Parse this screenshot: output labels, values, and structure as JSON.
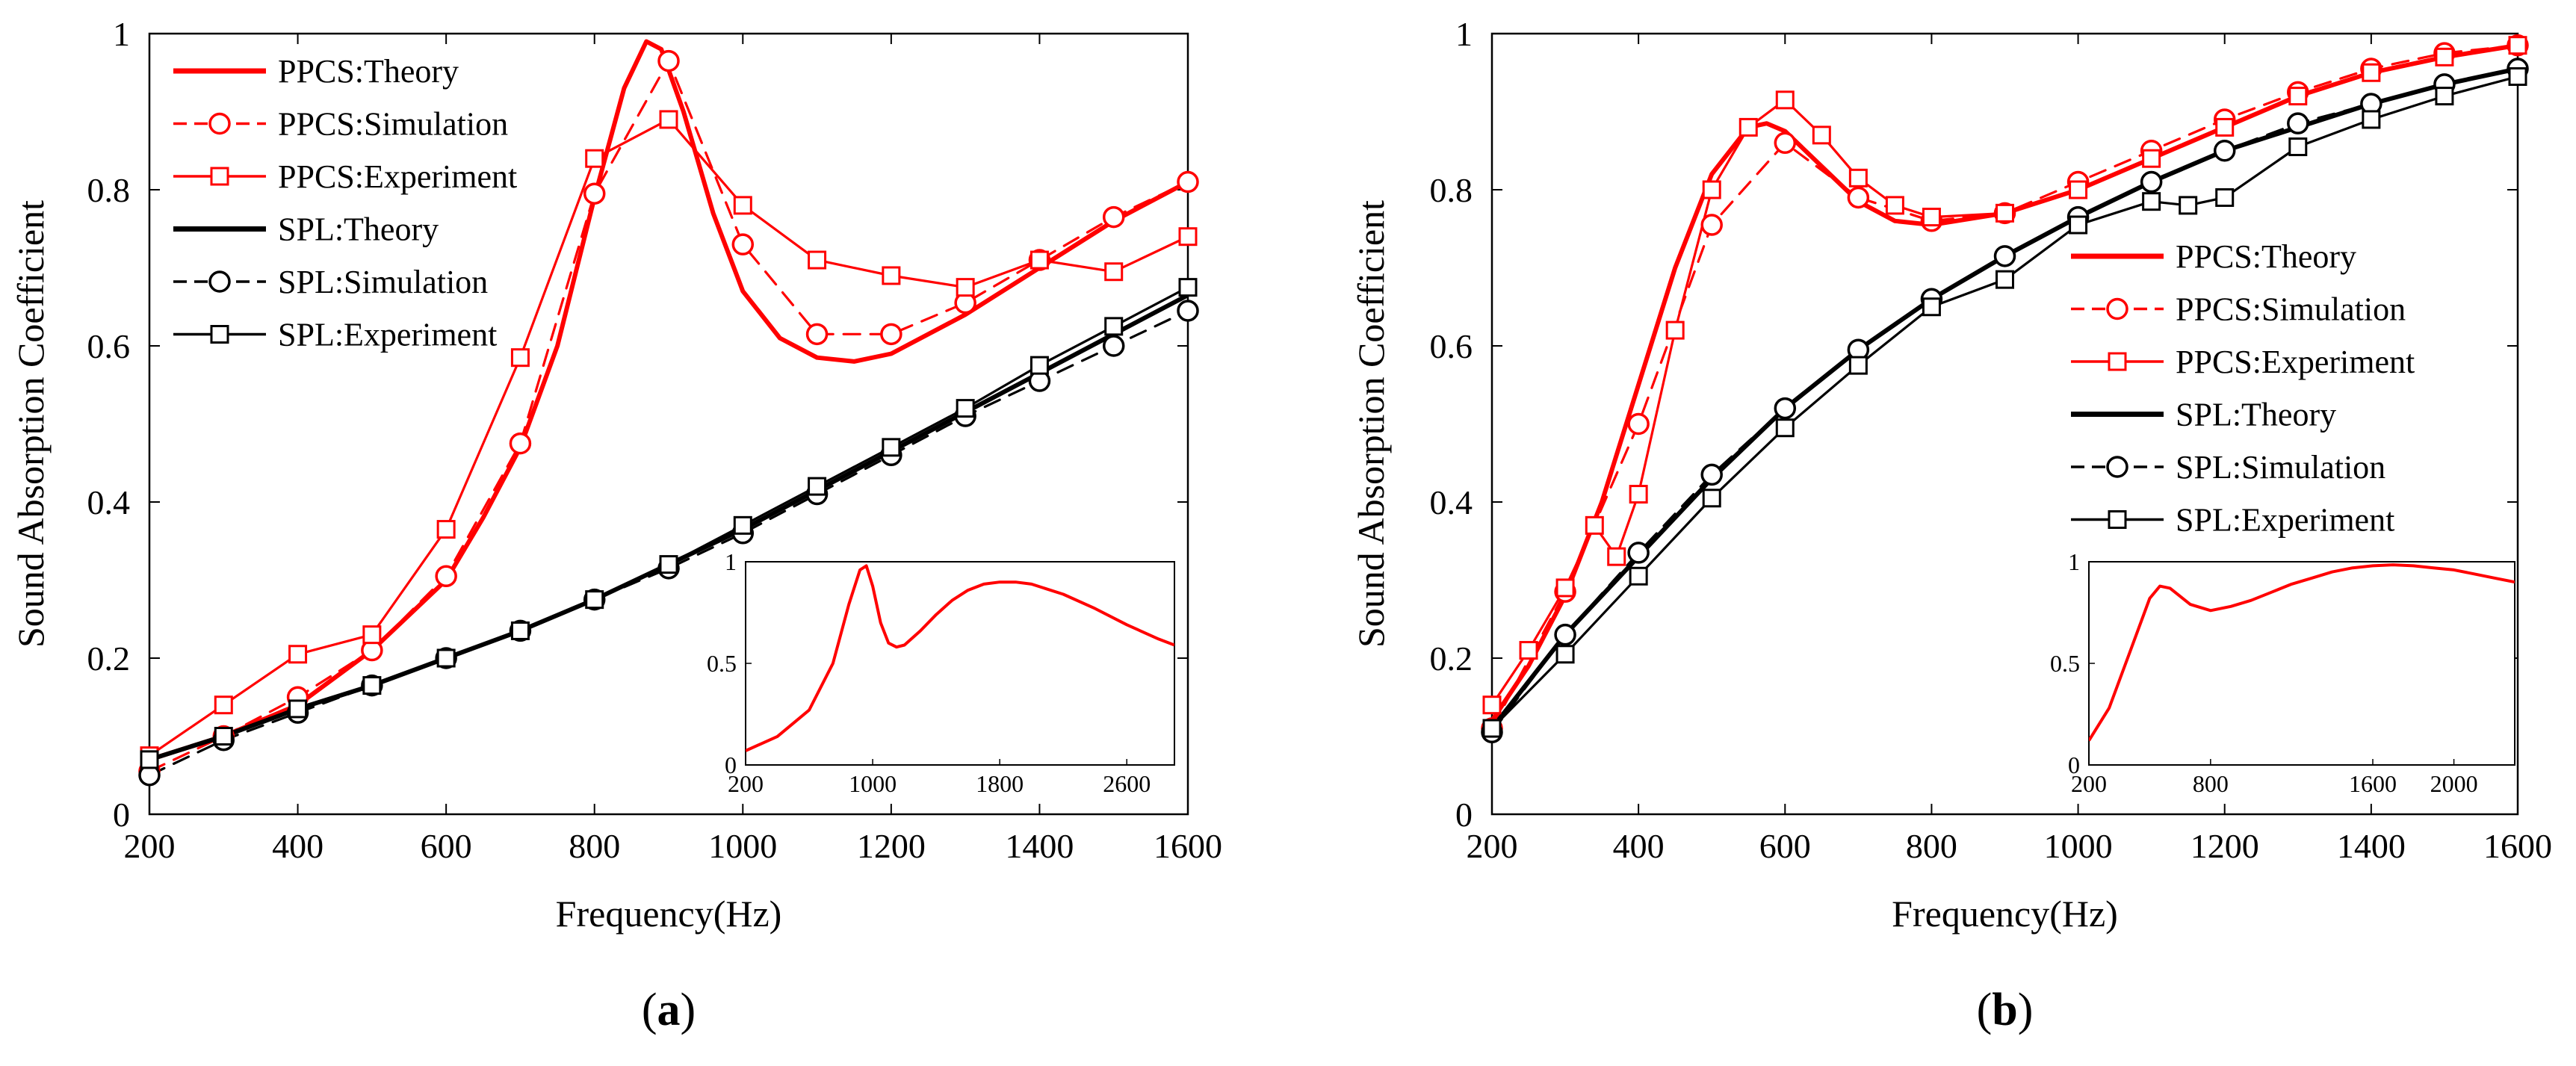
{
  "chart_data": [
    {
      "type": "line",
      "panel_label": "(a)",
      "panel_letter": "a",
      "xlabel": "Frequency(Hz)",
      "ylabel": "Sound Absorption Coefficient",
      "xlim": [
        200,
        1600
      ],
      "ylim": [
        0,
        1
      ],
      "xticks": [
        200,
        400,
        600,
        800,
        1000,
        1200,
        1400,
        1600
      ],
      "yticks": [
        0,
        0.2,
        0.4,
        0.6,
        0.8,
        1
      ],
      "ytick_labels": [
        "0",
        "0.2",
        "0.4",
        "0.6",
        "0.8",
        "1"
      ],
      "legend_position": "top-left",
      "series": [
        {
          "name": "PPCS:Theory",
          "color": "#ff0000",
          "style": "solid",
          "marker": "none",
          "width": "thick",
          "x": [
            200,
            300,
            400,
            500,
            600,
            650,
            700,
            750,
            800,
            840,
            870,
            890,
            920,
            960,
            1000,
            1050,
            1100,
            1150,
            1200,
            1300,
            1400,
            1500,
            1600
          ],
          "y": [
            0.07,
            0.1,
            0.14,
            0.21,
            0.3,
            0.38,
            0.47,
            0.6,
            0.79,
            0.93,
            0.99,
            0.98,
            0.9,
            0.77,
            0.67,
            0.61,
            0.585,
            0.58,
            0.59,
            0.64,
            0.7,
            0.76,
            0.81
          ]
        },
        {
          "name": "PPCS:Simulation",
          "color": "#ff0000",
          "style": "dashed",
          "marker": "circle",
          "width": "thin",
          "x": [
            200,
            300,
            400,
            500,
            600,
            700,
            800,
            900,
            1000,
            1100,
            1200,
            1300,
            1400,
            1500,
            1600
          ],
          "y": [
            0.055,
            0.1,
            0.15,
            0.21,
            0.305,
            0.475,
            0.795,
            0.965,
            0.73,
            0.615,
            0.615,
            0.655,
            0.71,
            0.765,
            0.81
          ]
        },
        {
          "name": "PPCS:Experiment",
          "color": "#ff0000",
          "style": "solid",
          "marker": "square",
          "width": "thin",
          "x": [
            200,
            300,
            400,
            500,
            600,
            700,
            800,
            900,
            1000,
            1100,
            1200,
            1300,
            1400,
            1500,
            1600
          ],
          "y": [
            0.075,
            0.14,
            0.205,
            0.23,
            0.365,
            0.585,
            0.84,
            0.89,
            0.78,
            0.71,
            0.69,
            0.675,
            0.71,
            0.695,
            0.74
          ]
        },
        {
          "name": "SPL:Theory",
          "color": "#000000",
          "style": "solid",
          "marker": "none",
          "width": "thick",
          "x": [
            200,
            300,
            400,
            500,
            600,
            700,
            800,
            900,
            1000,
            1100,
            1200,
            1300,
            1400,
            1500,
            1600
          ],
          "y": [
            0.07,
            0.1,
            0.135,
            0.165,
            0.2,
            0.235,
            0.275,
            0.32,
            0.365,
            0.415,
            0.465,
            0.515,
            0.565,
            0.615,
            0.665
          ]
        },
        {
          "name": "SPL:Simulation",
          "color": "#000000",
          "style": "dashed",
          "marker": "circle",
          "width": "thin",
          "x": [
            200,
            300,
            400,
            500,
            600,
            700,
            800,
            900,
            1000,
            1100,
            1200,
            1300,
            1400,
            1500,
            1600
          ],
          "y": [
            0.05,
            0.095,
            0.13,
            0.165,
            0.2,
            0.235,
            0.275,
            0.315,
            0.36,
            0.41,
            0.46,
            0.51,
            0.555,
            0.6,
            0.645
          ]
        },
        {
          "name": "SPL:Experiment",
          "color": "#000000",
          "style": "solid",
          "marker": "square",
          "width": "thin",
          "x": [
            200,
            300,
            400,
            500,
            600,
            700,
            800,
            900,
            1000,
            1100,
            1200,
            1300,
            1400,
            1500,
            1600
          ],
          "y": [
            0.07,
            0.1,
            0.135,
            0.165,
            0.2,
            0.235,
            0.275,
            0.32,
            0.37,
            0.42,
            0.47,
            0.52,
            0.575,
            0.625,
            0.675
          ]
        }
      ],
      "inset": {
        "xlim": [
          200,
          2900
        ],
        "ylim": [
          0,
          1
        ],
        "xticks": [
          200,
          1000,
          1800,
          2600
        ],
        "yticks": [
          0,
          0.5,
          1
        ],
        "ytick_labels": [
          "0",
          "0.5",
          "1"
        ],
        "series": [
          {
            "name": "PPCS:Theory",
            "color": "#ff0000",
            "x": [
              200,
              400,
              600,
              750,
              850,
              920,
              960,
              1000,
              1050,
              1100,
              1150,
              1200,
              1300,
              1400,
              1500,
              1600,
              1700,
              1800,
              1900,
              2000,
              2200,
              2400,
              2600,
              2800,
              2900
            ],
            "y": [
              0.07,
              0.14,
              0.27,
              0.5,
              0.79,
              0.96,
              0.98,
              0.88,
              0.7,
              0.6,
              0.58,
              0.59,
              0.66,
              0.74,
              0.81,
              0.86,
              0.89,
              0.9,
              0.9,
              0.89,
              0.84,
              0.77,
              0.69,
              0.62,
              0.59
            ]
          }
        ]
      }
    },
    {
      "type": "line",
      "panel_label": "(b)",
      "panel_letter": "b",
      "xlabel": "Frequency(Hz)",
      "ylabel": "Sound Absorption Coefficient",
      "xlim": [
        200,
        1600
      ],
      "ylim": [
        0,
        1
      ],
      "xticks": [
        200,
        400,
        600,
        800,
        1000,
        1200,
        1400,
        1600
      ],
      "yticks": [
        0,
        0.2,
        0.4,
        0.6,
        0.8,
        1
      ],
      "ytick_labels": [
        "0",
        "0.2",
        "0.4",
        "0.6",
        "0.8",
        "1"
      ],
      "legend_position": "right",
      "series": [
        {
          "name": "PPCS:Theory",
          "color": "#ff0000",
          "style": "solid",
          "marker": "none",
          "width": "thick",
          "x": [
            200,
            250,
            300,
            350,
            400,
            450,
            500,
            550,
            575,
            600,
            650,
            700,
            750,
            800,
            900,
            1000,
            1100,
            1200,
            1300,
            1400,
            1500,
            1600
          ],
          "y": [
            0.12,
            0.19,
            0.28,
            0.4,
            0.55,
            0.7,
            0.82,
            0.88,
            0.885,
            0.875,
            0.83,
            0.785,
            0.76,
            0.755,
            0.77,
            0.8,
            0.84,
            0.88,
            0.92,
            0.95,
            0.97,
            0.985
          ]
        },
        {
          "name": "PPCS:Simulation",
          "color": "#ff0000",
          "style": "dashed",
          "marker": "circle",
          "width": "thin",
          "x": [
            200,
            300,
            400,
            500,
            600,
            700,
            800,
            900,
            1000,
            1100,
            1200,
            1300,
            1400,
            1500,
            1600
          ],
          "y": [
            0.11,
            0.285,
            0.5,
            0.755,
            0.86,
            0.79,
            0.76,
            0.77,
            0.81,
            0.85,
            0.89,
            0.925,
            0.955,
            0.975,
            0.985
          ]
        },
        {
          "name": "PPCS:Experiment",
          "color": "#ff0000",
          "style": "solid",
          "marker": "square",
          "width": "thin",
          "x": [
            200,
            250,
            300,
            340,
            370,
            400,
            450,
            500,
            550,
            600,
            650,
            700,
            750,
            800,
            900,
            1000,
            1100,
            1200,
            1300,
            1400,
            1500,
            1600
          ],
          "y": [
            0.14,
            0.21,
            0.29,
            0.37,
            0.33,
            0.41,
            0.62,
            0.8,
            0.88,
            0.915,
            0.87,
            0.815,
            0.78,
            0.765,
            0.77,
            0.8,
            0.84,
            0.88,
            0.92,
            0.95,
            0.97,
            0.985
          ]
        },
        {
          "name": "SPL:Theory",
          "color": "#000000",
          "style": "solid",
          "marker": "none",
          "width": "thick",
          "x": [
            200,
            300,
            400,
            500,
            600,
            700,
            800,
            900,
            1000,
            1100,
            1200,
            1300,
            1400,
            1500,
            1600
          ],
          "y": [
            0.11,
            0.23,
            0.33,
            0.43,
            0.52,
            0.595,
            0.66,
            0.715,
            0.765,
            0.81,
            0.85,
            0.88,
            0.91,
            0.935,
            0.955
          ]
        },
        {
          "name": "SPL:Simulation",
          "color": "#000000",
          "style": "dashed",
          "marker": "circle",
          "width": "thin",
          "x": [
            200,
            300,
            400,
            500,
            600,
            700,
            800,
            900,
            1000,
            1100,
            1200,
            1300,
            1400,
            1500,
            1600
          ],
          "y": [
            0.105,
            0.23,
            0.335,
            0.435,
            0.52,
            0.595,
            0.66,
            0.715,
            0.765,
            0.81,
            0.85,
            0.885,
            0.91,
            0.935,
            0.955
          ]
        },
        {
          "name": "SPL:Experiment",
          "color": "#000000",
          "style": "solid",
          "marker": "square",
          "width": "thin",
          "x": [
            200,
            300,
            400,
            500,
            600,
            700,
            800,
            900,
            1000,
            1100,
            1150,
            1200,
            1300,
            1400,
            1500,
            1600
          ],
          "y": [
            0.11,
            0.205,
            0.305,
            0.405,
            0.495,
            0.575,
            0.65,
            0.685,
            0.755,
            0.785,
            0.78,
            0.79,
            0.855,
            0.89,
            0.92,
            0.945
          ]
        }
      ],
      "inset": {
        "xlim": [
          200,
          2300
        ],
        "ylim": [
          0,
          1
        ],
        "xticks": [
          200,
          800,
          1600,
          2000
        ],
        "yticks": [
          0,
          0.5,
          1
        ],
        "ytick_labels": [
          "0",
          "0.5",
          "1"
        ],
        "series": [
          {
            "name": "PPCS:Theory",
            "color": "#ff0000",
            "x": [
              200,
              300,
              400,
              500,
              550,
              600,
              700,
              800,
              900,
              1000,
              1100,
              1200,
              1300,
              1400,
              1500,
              1600,
              1700,
              1800,
              1900,
              2000,
              2100,
              2200,
              2300
            ],
            "y": [
              0.12,
              0.28,
              0.55,
              0.82,
              0.88,
              0.87,
              0.79,
              0.76,
              0.78,
              0.81,
              0.85,
              0.89,
              0.92,
              0.95,
              0.97,
              0.98,
              0.985,
              0.98,
              0.97,
              0.96,
              0.94,
              0.92,
              0.9
            ]
          }
        ]
      }
    }
  ]
}
